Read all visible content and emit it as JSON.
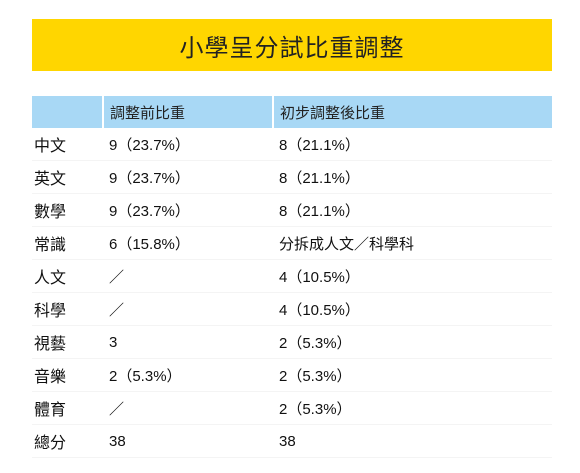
{
  "title": "小學呈分試比重調整",
  "table": {
    "headers": [
      "",
      "調整前比重",
      "初步調整後比重"
    ],
    "rows": [
      {
        "subject": "中文",
        "before": "9（23.7%）",
        "after": "8（21.1%）"
      },
      {
        "subject": "英文",
        "before": "9（23.7%）",
        "after": "8（21.1%）"
      },
      {
        "subject": "數學",
        "before": "9（23.7%）",
        "after": "8（21.1%）"
      },
      {
        "subject": "常識",
        "before": "6（15.8%）",
        "after": "分拆成人文／科學科"
      },
      {
        "subject": "人文",
        "before": "／",
        "after": "4（10.5%）"
      },
      {
        "subject": "科學",
        "before": "／",
        "after": "4（10.5%）"
      },
      {
        "subject": "視藝",
        "before": "3",
        "after": "2（5.3%）"
      },
      {
        "subject": "音樂",
        "before": "2（5.3%）",
        "after": "2（5.3%）"
      },
      {
        "subject": "體育",
        "before": "／",
        "after": "2（5.3%）"
      },
      {
        "subject": "總分",
        "before": "38",
        "after": "38"
      }
    ]
  },
  "colors": {
    "banner": "#ffd600",
    "header_row": "#a8d8f5"
  }
}
